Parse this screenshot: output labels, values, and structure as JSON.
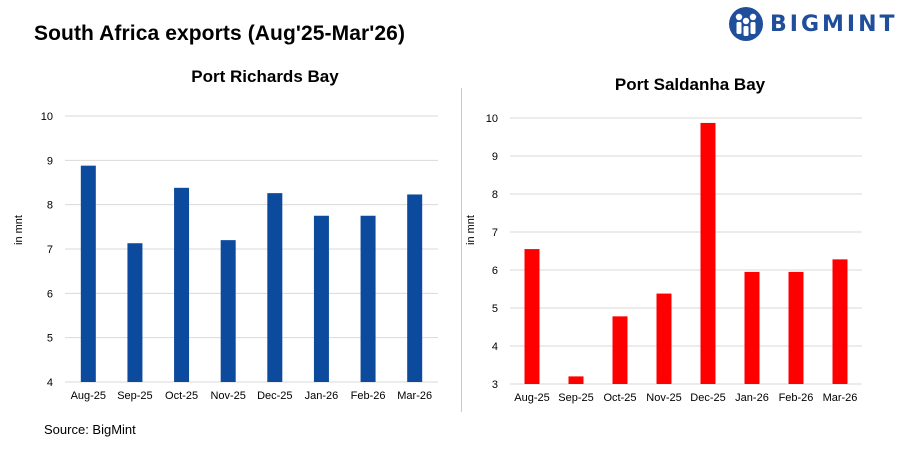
{
  "header": {
    "title": "South Africa exports (Aug'25-Mar'26)",
    "logo_text": "BIGMINT"
  },
  "footer": {
    "source": "Source: BigMint"
  },
  "chart_data": [
    {
      "type": "bar",
      "title": "Port Richards Bay",
      "ylabel": "in mnt",
      "xlabel": "",
      "categories": [
        "Aug-25",
        "Sep-25",
        "Oct-25",
        "Nov-25",
        "Dec-25",
        "Jan-26",
        "Feb-26",
        "Mar-26"
      ],
      "values": [
        8.88,
        7.13,
        8.38,
        7.2,
        8.26,
        7.75,
        7.75,
        8.23
      ],
      "ylim": [
        4,
        10
      ],
      "yticks": [
        4,
        5,
        6,
        7,
        8,
        9,
        10
      ],
      "grid": true,
      "color": "#0b4a9c"
    },
    {
      "type": "bar",
      "title": "Port Saldanha Bay",
      "ylabel": "in mnt",
      "xlabel": "",
      "categories": [
        "Aug-25",
        "Sep-25",
        "Oct-25",
        "Nov-25",
        "Dec-25",
        "Jan-26",
        "Feb-26",
        "Mar-26"
      ],
      "values": [
        6.55,
        3.2,
        4.78,
        5.38,
        9.87,
        5.95,
        5.95,
        6.28
      ],
      "ylim": [
        3,
        10
      ],
      "yticks": [
        3,
        4,
        5,
        6,
        7,
        8,
        9,
        10
      ],
      "grid": true,
      "color": "#ff0000"
    }
  ]
}
